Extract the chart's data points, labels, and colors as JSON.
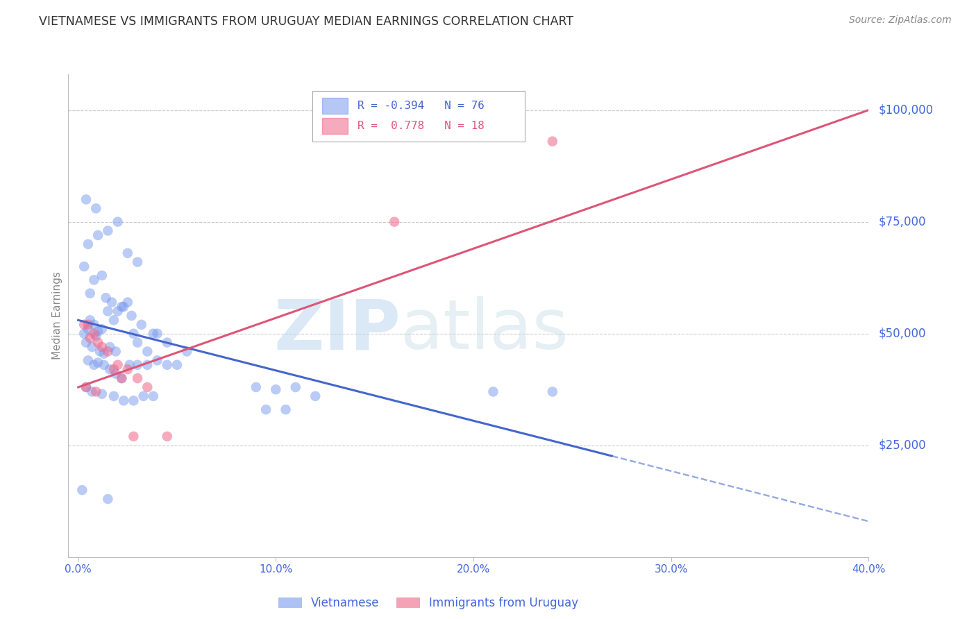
{
  "title": "VIETNAMESE VS IMMIGRANTS FROM URUGUAY MEDIAN EARNINGS CORRELATION CHART",
  "source": "Source: ZipAtlas.com",
  "xlabel_ticks": [
    "0.0%",
    "10.0%",
    "20.0%",
    "30.0%",
    "40.0%"
  ],
  "xlabel_values": [
    0.0,
    10.0,
    20.0,
    30.0,
    40.0
  ],
  "ylabel_ticks": [
    25000,
    50000,
    75000,
    100000
  ],
  "ylabel_labels": [
    "$25,000",
    "$50,000",
    "$75,000",
    "$100,000"
  ],
  "xlim": [
    -0.5,
    40.0
  ],
  "ylim": [
    0,
    108000
  ],
  "legend_label1": "Vietnamese",
  "legend_label2": "Immigrants from Uruguay",
  "watermark_zip": "ZIP",
  "watermark_atlas": "atlas",
  "blue_scatter": [
    [
      0.4,
      80000
    ],
    [
      0.9,
      78000
    ],
    [
      0.5,
      70000
    ],
    [
      1.0,
      72000
    ],
    [
      1.5,
      73000
    ],
    [
      2.0,
      75000
    ],
    [
      2.5,
      68000
    ],
    [
      3.0,
      66000
    ],
    [
      0.3,
      65000
    ],
    [
      0.8,
      62000
    ],
    [
      1.2,
      63000
    ],
    [
      0.6,
      59000
    ],
    [
      1.4,
      58000
    ],
    [
      1.7,
      57000
    ],
    [
      2.3,
      56000
    ],
    [
      2.7,
      54000
    ],
    [
      0.5,
      51000
    ],
    [
      0.8,
      52000
    ],
    [
      1.0,
      50500
    ],
    [
      1.2,
      51000
    ],
    [
      0.3,
      50000
    ],
    [
      0.6,
      53000
    ],
    [
      0.9,
      49500
    ],
    [
      1.5,
      55000
    ],
    [
      1.8,
      53000
    ],
    [
      2.0,
      55000
    ],
    [
      2.5,
      57000
    ],
    [
      2.2,
      56000
    ],
    [
      0.4,
      48000
    ],
    [
      0.7,
      47000
    ],
    [
      1.1,
      46000
    ],
    [
      1.3,
      45500
    ],
    [
      1.6,
      47000
    ],
    [
      1.9,
      46000
    ],
    [
      2.8,
      50000
    ],
    [
      3.0,
      48000
    ],
    [
      3.5,
      46000
    ],
    [
      4.0,
      50000
    ],
    [
      3.2,
      52000
    ],
    [
      3.8,
      50000
    ],
    [
      4.5,
      48000
    ],
    [
      5.5,
      46000
    ],
    [
      0.5,
      44000
    ],
    [
      0.8,
      43000
    ],
    [
      1.0,
      43500
    ],
    [
      1.3,
      43000
    ],
    [
      1.6,
      42000
    ],
    [
      1.9,
      41000
    ],
    [
      2.2,
      40000
    ],
    [
      2.6,
      43000
    ],
    [
      3.0,
      43000
    ],
    [
      3.5,
      43000
    ],
    [
      4.0,
      44000
    ],
    [
      4.5,
      43000
    ],
    [
      5.0,
      43000
    ],
    [
      0.4,
      38000
    ],
    [
      0.7,
      37000
    ],
    [
      1.2,
      36500
    ],
    [
      1.8,
      36000
    ],
    [
      2.3,
      35000
    ],
    [
      2.8,
      35000
    ],
    [
      3.3,
      36000
    ],
    [
      3.8,
      36000
    ],
    [
      9.0,
      38000
    ],
    [
      10.0,
      37500
    ],
    [
      11.0,
      38000
    ],
    [
      12.0,
      36000
    ],
    [
      21.0,
      37000
    ],
    [
      24.0,
      37000
    ],
    [
      9.5,
      33000
    ],
    [
      10.5,
      33000
    ],
    [
      0.2,
      15000
    ],
    [
      1.5,
      13000
    ]
  ],
  "pink_scatter": [
    [
      0.5,
      52000
    ],
    [
      0.8,
      50000
    ],
    [
      1.0,
      48000
    ],
    [
      1.5,
      46000
    ],
    [
      0.3,
      52000
    ],
    [
      0.6,
      49000
    ],
    [
      1.2,
      47000
    ],
    [
      2.0,
      43000
    ],
    [
      2.5,
      42000
    ],
    [
      2.8,
      27000
    ],
    [
      1.8,
      42000
    ],
    [
      2.2,
      40000
    ],
    [
      3.0,
      40000
    ],
    [
      3.5,
      38000
    ],
    [
      0.4,
      38000
    ],
    [
      0.9,
      37000
    ],
    [
      4.5,
      27000
    ],
    [
      16.0,
      75000
    ],
    [
      24.0,
      93000
    ]
  ],
  "blue_line_x0": 0.0,
  "blue_line_y0": 53000,
  "blue_line_x1": 40.0,
  "blue_line_y1": 8000,
  "blue_line_solid_end_x": 27.0,
  "pink_line_x0": 0.0,
  "pink_line_y0": 38000,
  "pink_line_x1": 40.0,
  "pink_line_y1": 100000,
  "bg_color": "#ffffff",
  "title_color": "#333333",
  "source_color": "#888888",
  "axis_label_color": "#888888",
  "axis_tick_color": "#4466dd",
  "right_ylabel_color": "#4466dd",
  "grid_color": "#cccccc",
  "blue_dot_color": "#7799ee",
  "pink_dot_color": "#ee6688",
  "blue_line_color": "#4466cc",
  "pink_line_color": "#dd5577",
  "legend_blue_color": "#7799ee",
  "legend_pink_color": "#ee6688",
  "legend_text_blue": "#4466cc",
  "legend_text_pink": "#dd5577"
}
